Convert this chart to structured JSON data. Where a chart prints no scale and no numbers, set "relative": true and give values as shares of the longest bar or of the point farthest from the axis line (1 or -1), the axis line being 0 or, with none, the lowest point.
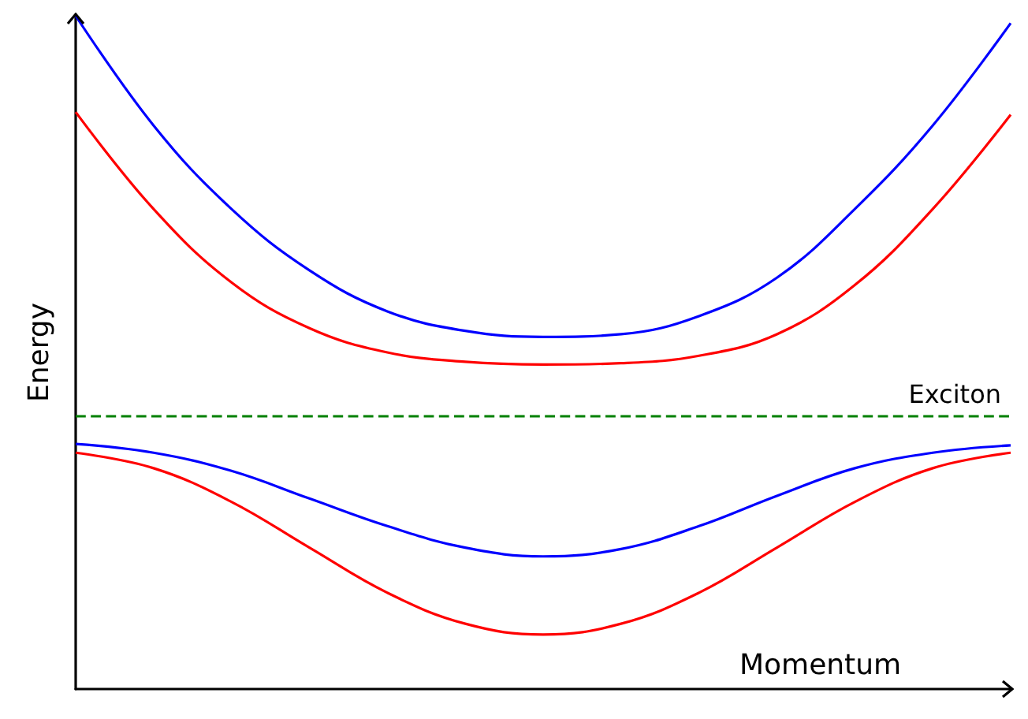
{
  "chart_data": {
    "type": "line",
    "relative": true,
    "xlabel": "Momentum",
    "ylabel": "Energy",
    "categories": [
      null,
      null,
      null,
      null,
      null,
      null,
      null,
      null,
      null,
      null,
      null,
      null,
      null
    ],
    "series": [
      {
        "color": "#0000ff",
        "values": [
          1.0,
          0.837,
          0.713,
          0.622,
          0.561,
          0.532,
          0.523,
          0.527,
          0.554,
          0.611,
          0.713,
          0.837,
          0.989
        ]
      },
      {
        "color": "#ff0000",
        "values": [
          0.857,
          0.713,
          0.604,
          0.536,
          0.5,
          0.486,
          0.482,
          0.484,
          0.495,
          0.527,
          0.6,
          0.713,
          0.853
        ]
      },
      {
        "color": "#0000ff",
        "values": [
          0.364,
          0.351,
          0.324,
          0.283,
          0.242,
          0.21,
          0.197,
          0.208,
          0.242,
          0.287,
          0.328,
          0.351,
          0.362
        ]
      },
      {
        "color": "#ff0000",
        "values": [
          0.351,
          0.328,
          0.278,
          0.21,
          0.143,
          0.097,
          0.081,
          0.097,
          0.143,
          0.21,
          0.278,
          0.328,
          0.351
        ]
      }
    ],
    "ref_lines": [
      {
        "axis": "y",
        "value": 0.405,
        "label": "Exciton",
        "color": "#008000",
        "line_style": "dashed"
      }
    ],
    "marker": "none",
    "line_style": "solid",
    "grid": false
  }
}
